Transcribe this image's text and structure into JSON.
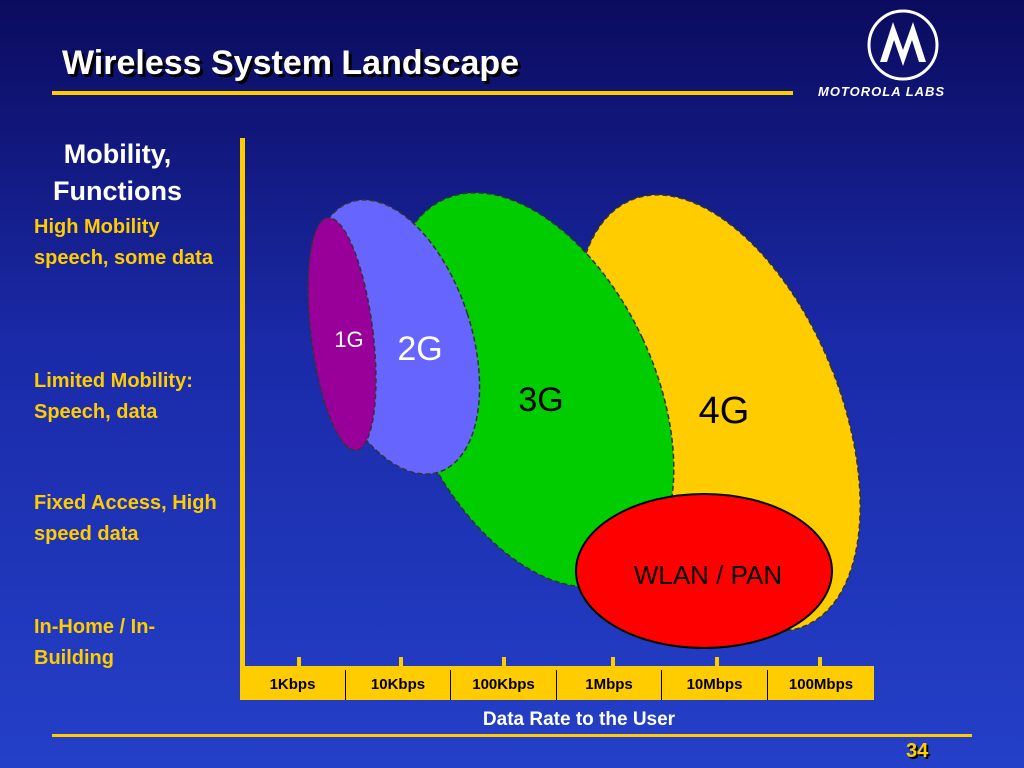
{
  "slide": {
    "title": "Wireless System Landscape",
    "number": "34"
  },
  "logo": {
    "text": "MOTOROLA LABS"
  },
  "y_axis": {
    "title": "Mobility, Functions",
    "labels": [
      "High Mobility speech, some data",
      "Limited Mobility: Speech, data",
      "Fixed Access, High speed data",
      "In-Home / In-Building"
    ]
  },
  "x_axis": {
    "title": "Data Rate to the User",
    "ticks": [
      "1Kbps",
      "10Kbps",
      "100Kbps",
      "1Mbps",
      "10Mbps",
      "100Mbps"
    ]
  },
  "regions": {
    "g1": {
      "label": "1G",
      "color": "#990099"
    },
    "g2": {
      "label": "2G",
      "color": "#6666ff"
    },
    "g3": {
      "label": "3G",
      "color": "#00cc00"
    },
    "g4": {
      "label": "4G",
      "color": "#ffcc00"
    },
    "wlan": {
      "label": "WLAN / PAN",
      "color": "#ff0000"
    }
  },
  "colors": {
    "accent": "#ffcc00",
    "background": "#1a2aa8",
    "text": "#ffffff"
  }
}
